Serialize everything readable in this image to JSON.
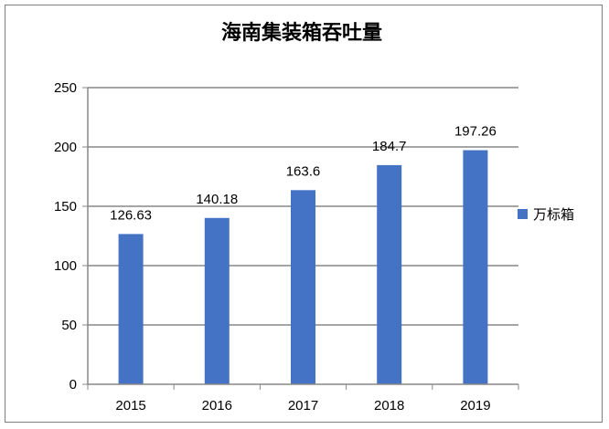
{
  "chart_data": {
    "type": "bar",
    "title": "海南集装箱吞吐量",
    "categories": [
      "2015",
      "2016",
      "2017",
      "2018",
      "2019"
    ],
    "series": [
      {
        "name": "万标箱",
        "values": [
          126.63,
          140.18,
          163.6,
          184.7,
          197.26
        ],
        "color": "#4472c4"
      }
    ],
    "data_labels": [
      "126.63",
      "140.18",
      "163.6",
      "184.7",
      "197.26"
    ],
    "ylim": [
      0,
      250
    ],
    "yticks": [
      0,
      50,
      100,
      150,
      200,
      250
    ],
    "grid": true,
    "legend_position": "right"
  }
}
